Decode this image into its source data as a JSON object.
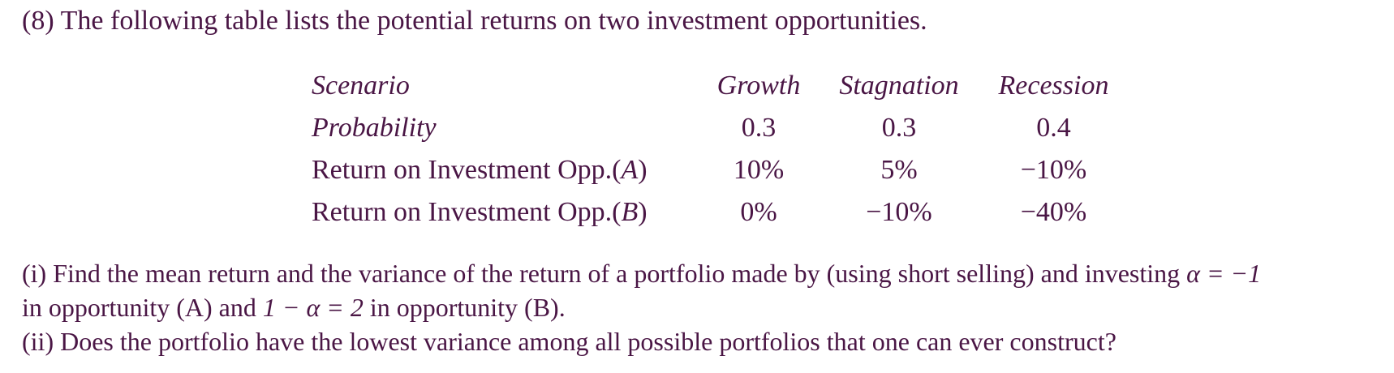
{
  "problem": {
    "number": "(8)",
    "intro": "The following table lists the potential returns on two investment opportunities."
  },
  "table": {
    "header": {
      "label": "Scenario",
      "columns": [
        "Growth",
        "Stagnation",
        "Recession"
      ]
    },
    "rows": [
      {
        "label": "Probability",
        "values": [
          "0.3",
          "0.3",
          "0.4"
        ]
      },
      {
        "label_prefix": "Return on Investment Opp.(",
        "label_var": "A",
        "label_suffix": ")",
        "values": [
          "10%",
          "5%",
          "−10%"
        ]
      },
      {
        "label_prefix": "Return on Investment Opp.(",
        "label_var": "B",
        "label_suffix": ")",
        "values": [
          "0%",
          "−10%",
          "−40%"
        ]
      }
    ]
  },
  "questions": {
    "q1_line1_a": "(i) Find the mean return and the variance of the return of a portfolio made by (using short selling) and investing ",
    "q1_alpha_expr": "α = −1",
    "q1_line2_a": "in opportunity (A) and ",
    "q1_one_minus_alpha": "1 − α = 2",
    "q1_line2_b": " in opportunity (B).",
    "q2": "(ii) Does the portfolio have the lowest variance among all possible portfolios that one can ever construct?"
  }
}
